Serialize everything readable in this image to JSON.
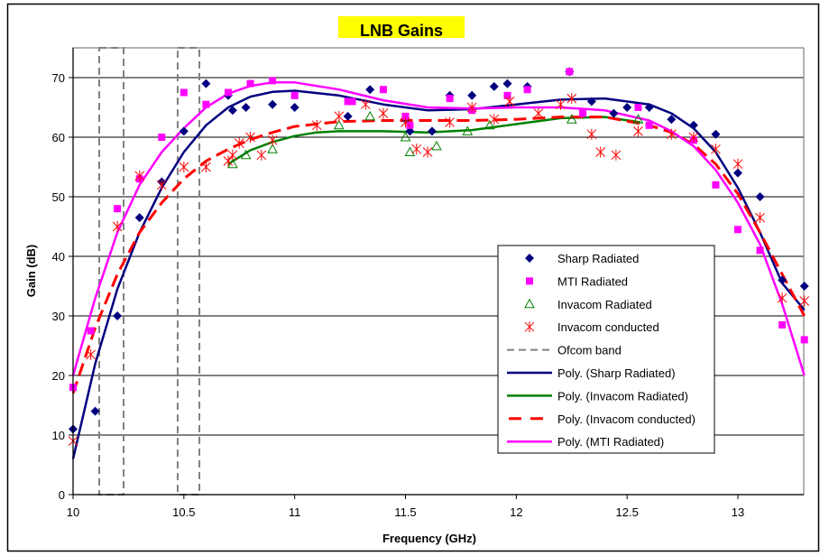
{
  "chart_data": {
    "type": "scatter",
    "title": "LNB Gains",
    "title_highlight_color": "#ffff00",
    "xlabel": "Frequency (GHz)",
    "ylabel": "Gain (dB)",
    "xlim": [
      10,
      13.3
    ],
    "ylim": [
      0,
      75
    ],
    "xticks": [
      10,
      10.5,
      11,
      11.5,
      12,
      12.5,
      13
    ],
    "xtick_labels": [
      "10",
      "10.5",
      "11",
      "11.5",
      "12",
      "12.5",
      "13"
    ],
    "yticks": [
      0,
      10,
      20,
      30,
      40,
      50,
      60,
      70
    ],
    "ytick_labels": [
      "0",
      "10",
      "20",
      "30",
      "40",
      "50",
      "60",
      "70"
    ],
    "grid": "horizontal",
    "legend_position": "right",
    "series": [
      {
        "name": "Sharp Radiated",
        "marker": "diamond",
        "color": "#000080",
        "x": [
          10,
          10.1,
          10.2,
          10.3,
          10.4,
          10.5,
          10.6,
          10.7,
          10.72,
          10.78,
          10.9,
          11,
          11.24,
          11.34,
          11.5,
          11.52,
          11.62,
          11.7,
          11.8,
          11.9,
          11.96,
          12.05,
          12.24,
          12.34,
          12.44,
          12.5,
          12.6,
          12.7,
          12.8,
          12.9,
          13,
          13.1,
          13.2,
          13.3
        ],
        "y": [
          11,
          14,
          30,
          46.5,
          52.5,
          61,
          69,
          67,
          64.5,
          65,
          65.5,
          65,
          63.5,
          68,
          63,
          61,
          61,
          67,
          67,
          68.5,
          69,
          68.5,
          71,
          66,
          64,
          65,
          65,
          63,
          62,
          60.5,
          54,
          50,
          36,
          35
        ]
      },
      {
        "name": "MTI Radiated",
        "marker": "square",
        "color": "#ff00ff",
        "x": [
          10,
          10.08,
          10.2,
          10.3,
          10.4,
          10.5,
          10.6,
          10.7,
          10.8,
          10.9,
          11,
          11.24,
          11.26,
          11.4,
          11.5,
          11.52,
          11.7,
          11.8,
          11.96,
          12.05,
          12.24,
          12.3,
          12.55,
          12.6,
          12.8,
          12.9,
          13,
          13.1,
          13.2,
          13.3
        ],
        "y": [
          18,
          27.5,
          48,
          53,
          60,
          67.5,
          65.5,
          67.5,
          69,
          69.5,
          67,
          66,
          66,
          68,
          63.5,
          62,
          66.5,
          64.5,
          67,
          68,
          71,
          64,
          65,
          62,
          59.5,
          52,
          44.5,
          41,
          28.5,
          26
        ]
      },
      {
        "name": "Invacom Radiated",
        "marker": "triangle",
        "color": "#008000",
        "x": [
          10.72,
          10.78,
          10.9,
          11.2,
          11.34,
          11.5,
          11.52,
          11.64,
          11.78,
          11.88,
          12.25,
          12.55
        ],
        "y": [
          55.5,
          57,
          58,
          62,
          63.5,
          60,
          57.5,
          58.5,
          61,
          62,
          63,
          63
        ]
      },
      {
        "name": "Invacom conducted",
        "marker": "star",
        "color": "#ff0000",
        "x": [
          10,
          10.08,
          10.2,
          10.3,
          10.4,
          10.5,
          10.6,
          10.7,
          10.72,
          10.75,
          10.8,
          10.85,
          10.9,
          11.1,
          11.2,
          11.32,
          11.4,
          11.5,
          11.55,
          11.6,
          11.7,
          11.8,
          11.9,
          11.97,
          12.1,
          12.2,
          12.25,
          12.34,
          12.38,
          12.45,
          12.55,
          12.7,
          12.8,
          12.9,
          13,
          13.1,
          13.2,
          13.3
        ],
        "y": [
          9,
          23.5,
          45,
          53.5,
          52,
          55,
          55,
          56,
          57,
          59,
          60,
          57,
          59.5,
          62,
          63.5,
          65.5,
          64,
          62.5,
          58,
          57.5,
          62.5,
          65,
          63,
          66,
          64,
          65.5,
          66.5,
          60.5,
          57.5,
          57,
          61,
          60.5,
          60,
          58,
          55.5,
          46.5,
          33,
          32.5
        ]
      }
    ],
    "trendlines": [
      {
        "name": "Poly. (Sharp Radiated)",
        "color": "#000080",
        "style": "solid",
        "x": [
          10,
          10.1,
          10.2,
          10.3,
          10.4,
          10.5,
          10.6,
          10.7,
          10.8,
          10.9,
          11,
          11.2,
          11.4,
          11.6,
          11.8,
          12,
          12.2,
          12.4,
          12.6,
          12.7,
          12.8,
          12.9,
          13,
          13.1,
          13.2,
          13.3
        ],
        "y": [
          6,
          22,
          34.5,
          44,
          51.5,
          57.5,
          62,
          65,
          66.8,
          67.6,
          67.8,
          67,
          65.5,
          64.5,
          64.7,
          65.5,
          66.3,
          66.5,
          65.5,
          64,
          61.5,
          57.5,
          51.5,
          44,
          35.5,
          31
        ]
      },
      {
        "name": "Poly. (Invacom Radiated)",
        "color": "#008000",
        "style": "solid",
        "x": [
          10.7,
          10.8,
          10.9,
          11,
          11.1,
          11.2,
          11.4,
          11.6,
          11.8,
          12,
          12.2,
          12.4,
          12.56
        ],
        "y": [
          55.5,
          57.8,
          59.2,
          60.2,
          60.8,
          61,
          61,
          60.8,
          61.2,
          62.2,
          63.2,
          63.4,
          62.5
        ]
      },
      {
        "name": "Poly. (Invacom conducted)",
        "color": "#ff0000",
        "style": "dashed",
        "x": [
          10,
          10.1,
          10.2,
          10.3,
          10.4,
          10.5,
          10.6,
          10.7,
          10.8,
          10.9,
          11,
          11.2,
          11.4,
          11.6,
          11.8,
          12,
          12.2,
          12.4,
          12.6,
          12.7,
          12.8,
          12.9,
          13,
          13.1,
          13.2,
          13.3
        ],
        "y": [
          17,
          28,
          37,
          44,
          49,
          53,
          56,
          58,
          59.6,
          60.8,
          61.8,
          62.6,
          62.8,
          62.8,
          62.8,
          63,
          63.4,
          63.4,
          62,
          60.8,
          58.8,
          55.5,
          50.5,
          44,
          37,
          30
        ]
      },
      {
        "name": "Poly. (MTI Radiated)",
        "color": "#ff00ff",
        "style": "solid",
        "x": [
          10,
          10.1,
          10.2,
          10.3,
          10.4,
          10.5,
          10.6,
          10.7,
          10.8,
          10.9,
          11,
          11.2,
          11.4,
          11.6,
          11.8,
          12,
          12.2,
          12.4,
          12.6,
          12.7,
          12.8,
          12.9,
          13,
          13.1,
          13.2,
          13.3
        ],
        "y": [
          20,
          33,
          44,
          52,
          57.5,
          61.5,
          65,
          67.3,
          68.6,
          69.2,
          69.2,
          68,
          66.2,
          65,
          64.8,
          65,
          65,
          64.5,
          62.8,
          61,
          58.5,
          54.5,
          49,
          42,
          32,
          20
        ]
      }
    ],
    "ofcom_band": {
      "name": "Ofcom band",
      "color": "#808080",
      "style": "dashed",
      "boxes": [
        [
          10.118,
          10.228
        ],
        [
          10.472,
          10.57
        ]
      ],
      "y_range": [
        0,
        75
      ]
    },
    "legend": [
      {
        "label": "Sharp Radiated",
        "kind": "diamond",
        "color": "#000080"
      },
      {
        "label": "MTI Radiated",
        "kind": "square",
        "color": "#ff00ff"
      },
      {
        "label": "Invacom Radiated",
        "kind": "triangle",
        "color": "#008000"
      },
      {
        "label": "Invacom conducted",
        "kind": "star",
        "color": "#ff0000"
      },
      {
        "label": "Ofcom band",
        "kind": "dash-gray",
        "color": "#808080"
      },
      {
        "label": "Poly. (Sharp Radiated)",
        "kind": "line",
        "color": "#000080"
      },
      {
        "label": "Poly. (Invacom Radiated)",
        "kind": "line",
        "color": "#008000"
      },
      {
        "label": "Poly. (Invacom conducted)",
        "kind": "dash-red",
        "color": "#ff0000"
      },
      {
        "label": "Poly. (MTI Radiated)",
        "kind": "line",
        "color": "#ff00ff"
      }
    ]
  }
}
